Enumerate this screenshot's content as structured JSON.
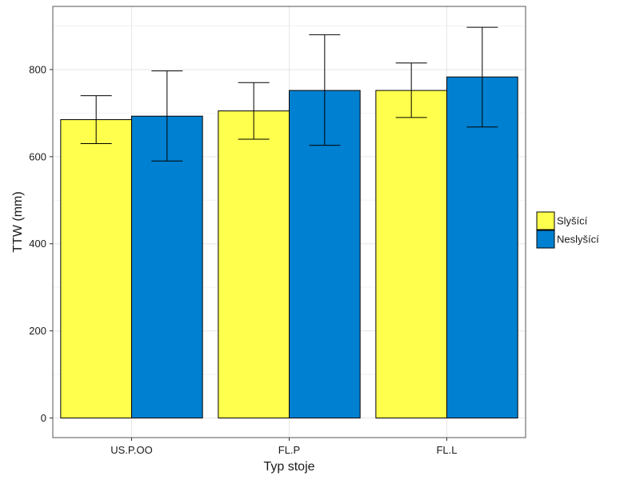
{
  "chart_data": {
    "type": "bar",
    "xlabel": "Typ stoje",
    "ylabel": "TTW (mm)",
    "categories": [
      "US.P.OO",
      "FL.P",
      "FL.L"
    ],
    "series": [
      {
        "name": "Slyšící",
        "color": "#ffff4d",
        "values": [
          685,
          705,
          752
        ],
        "error_low": [
          630,
          640,
          690
        ],
        "error_high": [
          740,
          770,
          815
        ]
      },
      {
        "name": "Neslyšící",
        "color": "#0080d0",
        "values": [
          693,
          752,
          783
        ],
        "error_low": [
          590,
          626,
          668
        ],
        "error_high": [
          797,
          880,
          897
        ]
      }
    ],
    "ylim": [
      -45,
      945
    ],
    "yticks": [
      0,
      200,
      400,
      600,
      800
    ],
    "grid": true,
    "legend_position": "right"
  }
}
